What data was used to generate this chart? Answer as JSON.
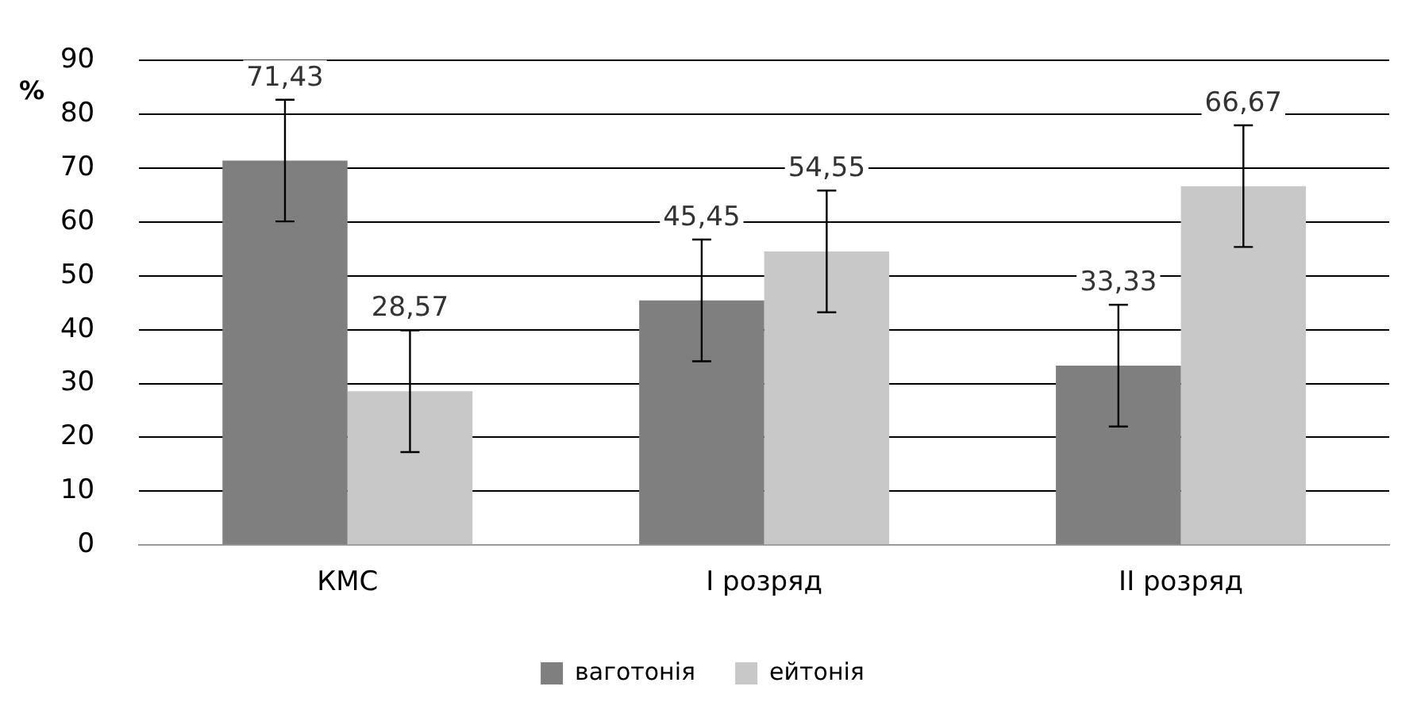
{
  "chart_data": {
    "type": "bar",
    "ylabel": "%",
    "categories": [
      "КМС",
      "I розряд",
      "II розряд"
    ],
    "series": [
      {
        "name": "ваготонія",
        "color": "#7f7f7f",
        "values": [
          71.43,
          45.45,
          33.33
        ],
        "errors": [
          11.3,
          11.3,
          11.3
        ],
        "value_labels": [
          "71,43",
          "45,45",
          "33,33"
        ]
      },
      {
        "name": "ейтонія",
        "color": "#c8c8c8",
        "values": [
          28.57,
          54.55,
          66.67
        ],
        "errors": [
          11.3,
          11.3,
          11.3
        ],
        "value_labels": [
          "28,57",
          "54,55",
          "66,67"
        ]
      }
    ],
    "ylim": [
      0,
      90
    ],
    "yticks": [
      0,
      10,
      20,
      30,
      40,
      50,
      60,
      70,
      80,
      90
    ],
    "grid": "y",
    "legend": "bottom"
  }
}
